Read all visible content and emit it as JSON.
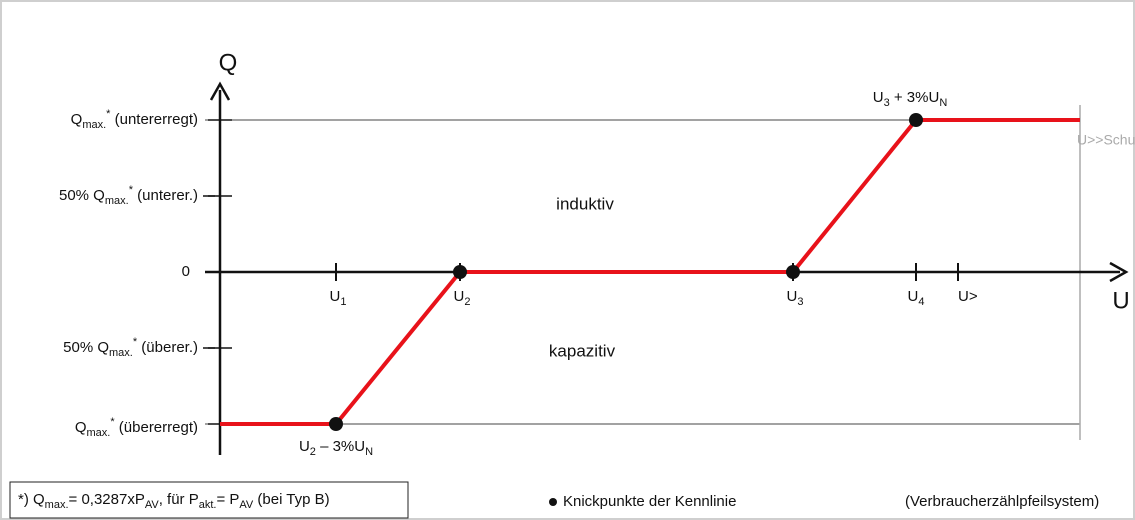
{
  "axis_labels": {
    "y": "Q",
    "x": "U"
  },
  "y_labels": [
    [
      {
        "text": "Q"
      },
      {
        "text": "max.",
        "pos": "sub"
      },
      {
        "text": "*",
        "pos": "sup"
      },
      {
        "text": " (untererregt)"
      }
    ],
    [
      {
        "text": "50% Q"
      },
      {
        "text": "max.",
        "pos": "sub"
      },
      {
        "text": "*",
        "pos": "sup"
      },
      {
        "text": " (unterer.)"
      }
    ],
    [
      {
        "text": "0"
      }
    ],
    [
      {
        "text": "50% Q"
      },
      {
        "text": "max.",
        "pos": "sub"
      },
      {
        "text": "*",
        "pos": "sup"
      },
      {
        "text": " (überer.)"
      }
    ],
    [
      {
        "text": "Q"
      },
      {
        "text": "max.",
        "pos": "sub"
      },
      {
        "text": "*",
        "pos": "sup"
      },
      {
        "text": " (übererregt)"
      }
    ]
  ],
  "x_labels": [
    [
      {
        "text": "U"
      },
      {
        "text": "1",
        "pos": "sub"
      }
    ],
    [
      {
        "text": "U"
      },
      {
        "text": "2",
        "pos": "sub"
      }
    ],
    [
      {
        "text": "U"
      },
      {
        "text": "3",
        "pos": "sub"
      }
    ],
    [
      {
        "text": "U"
      },
      {
        "text": "4",
        "pos": "sub"
      }
    ],
    [
      {
        "text": "U>"
      }
    ]
  ],
  "point_labels": [
    [
      {
        "text": "U"
      },
      {
        "text": "3",
        "pos": "sub"
      },
      {
        "text": " + 3%U"
      },
      {
        "text": "N",
        "pos": "sub"
      }
    ],
    [
      {
        "text": "U"
      },
      {
        "text": "2",
        "pos": "sub"
      },
      {
        "text": " – 3%U"
      },
      {
        "text": "N",
        "pos": "sub"
      }
    ]
  ],
  "regions": [
    "induktiv",
    "kapazitiv"
  ],
  "limit_label": "U>>Schutz",
  "footer": {
    "note": [
      {
        "text": "*) Q"
      },
      {
        "text": "max.",
        "pos": "sub"
      },
      {
        "text": "= 0,3287xP"
      },
      {
        "text": "AV",
        "pos": "sub"
      },
      {
        "text": ", für P"
      },
      {
        "text": "akt.",
        "pos": "sub"
      },
      {
        "text": "= P"
      },
      {
        "text": "AV",
        "pos": "sub"
      },
      {
        "text": " (bei Typ B)"
      }
    ],
    "legend": "Knickpunkte der Kennlinie",
    "system": "(Verbraucherzählpfeilsystem)"
  }
}
